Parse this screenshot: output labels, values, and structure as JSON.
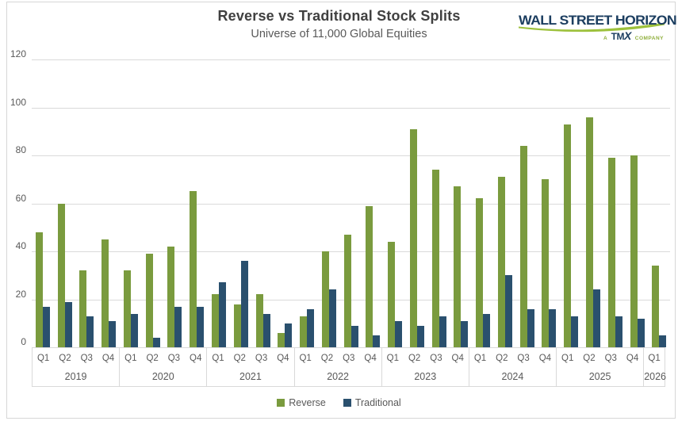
{
  "title": "Reverse vs Traditional Stock Splits",
  "subtitle": "Universe of 11,000 Global Equities",
  "logo": {
    "brand": "WALL STREET HORIZON",
    "sub_prefix": "A",
    "sub_brand_tm": "TM",
    "sub_brand_x": "X",
    "sub_suffix": "COMPANY"
  },
  "colors": {
    "reverse": "#7a9b3e",
    "traditional": "#2a506e",
    "grid": "#dadada",
    "axis_text": "#595959",
    "title_text": "#404040",
    "logo_navy": "#1c3e60",
    "logo_green": "#9dc13c"
  },
  "chart_data": {
    "type": "bar",
    "title": "Reverse vs Traditional Stock Splits",
    "subtitle": "Universe of 11,000 Global Equities",
    "ylim": [
      0,
      120
    ],
    "y_ticks": [
      0,
      20,
      40,
      60,
      80,
      100,
      120
    ],
    "grid": true,
    "legend_position": "bottom",
    "x_groups": [
      {
        "year": "2019",
        "quarters": [
          "Q1",
          "Q2",
          "Q3",
          "Q4"
        ]
      },
      {
        "year": "2020",
        "quarters": [
          "Q1",
          "Q2",
          "Q3",
          "Q4"
        ]
      },
      {
        "year": "2021",
        "quarters": [
          "Q1",
          "Q2",
          "Q3",
          "Q4"
        ]
      },
      {
        "year": "2022",
        "quarters": [
          "Q1",
          "Q2",
          "Q3",
          "Q4"
        ]
      },
      {
        "year": "2023",
        "quarters": [
          "Q1",
          "Q2",
          "Q3",
          "Q4"
        ]
      },
      {
        "year": "2024",
        "quarters": [
          "Q1",
          "Q2",
          "Q3",
          "Q4"
        ]
      },
      {
        "year": "2025",
        "quarters": [
          "Q1",
          "Q2",
          "Q3",
          "Q4"
        ]
      },
      {
        "year": "2026",
        "quarters": [
          "Q1"
        ]
      }
    ],
    "series": [
      {
        "name": "Reverse",
        "color_key": "reverse",
        "values": [
          48,
          60,
          32,
          45,
          32,
          39,
          42,
          65,
          22,
          18,
          22,
          6,
          13,
          40,
          47,
          59,
          44,
          91,
          74,
          67,
          62,
          71,
          84,
          70,
          93,
          96,
          79,
          80,
          34
        ]
      },
      {
        "name": "Traditional",
        "color_key": "traditional",
        "values": [
          17,
          19,
          13,
          11,
          14,
          4,
          17,
          17,
          27,
          36,
          14,
          10,
          16,
          24,
          9,
          5,
          11,
          9,
          13,
          11,
          14,
          30,
          16,
          16,
          13,
          24,
          13,
          12,
          5
        ]
      }
    ]
  }
}
